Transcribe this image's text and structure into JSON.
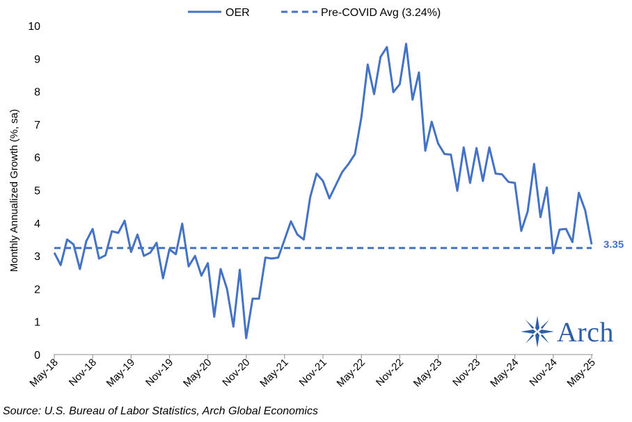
{
  "chart_data": {
    "type": "line",
    "title": "",
    "xlabel": "",
    "ylabel": "Monthly Annualized Growth (%, sa)",
    "ylim": [
      0,
      10
    ],
    "yticks": [
      "0",
      "1",
      "2",
      "3",
      "4",
      "5",
      "6",
      "7",
      "8",
      "9",
      "10"
    ],
    "xticks": [
      "May-18",
      "Nov-18",
      "May-19",
      "Nov-19",
      "May-20",
      "Nov-20",
      "May-21",
      "Nov-21",
      "May-22",
      "Nov-22",
      "May-23",
      "Nov-23",
      "May-24",
      "Nov-24",
      "May-25"
    ],
    "series": [
      {
        "name": "OER",
        "style": "solid",
        "color": "#4472c4",
        "values": [
          3.1,
          2.72,
          3.5,
          3.35,
          2.6,
          3.45,
          3.82,
          2.92,
          3.02,
          3.75,
          3.7,
          4.07,
          3.12,
          3.65,
          3.0,
          3.1,
          3.4,
          2.32,
          3.2,
          3.05,
          3.98,
          2.68,
          3.0,
          2.4,
          2.78,
          1.15,
          2.6,
          2.0,
          0.85,
          2.58,
          0.5,
          1.7,
          1.7,
          2.95,
          2.92,
          2.95,
          3.5,
          4.05,
          3.65,
          3.5,
          4.78,
          5.5,
          5.28,
          4.75,
          5.15,
          5.55,
          5.8,
          6.1,
          7.2,
          8.82,
          7.92,
          9.05,
          9.35,
          7.98,
          8.22,
          9.45,
          7.75,
          8.58,
          6.2,
          7.08,
          6.42,
          6.1,
          6.08,
          4.98,
          6.3,
          5.22,
          6.28,
          5.28,
          6.3,
          5.5,
          5.48,
          5.25,
          5.22,
          3.76,
          4.35,
          5.8,
          4.18,
          5.08,
          3.08,
          3.8,
          3.82,
          3.42,
          4.92,
          4.38,
          3.35
        ]
      },
      {
        "name": "Pre-COVID Avg (3.24%)",
        "style": "dashed",
        "color": "#4472c4",
        "value": 3.24
      }
    ],
    "end_label": "3.35",
    "legend_position": "top-center"
  },
  "source": "Source: U.S. Bureau of Labor Statistics, Arch Global Economics",
  "logo": {
    "text": "Arch",
    "color": "#2f5ea8"
  }
}
